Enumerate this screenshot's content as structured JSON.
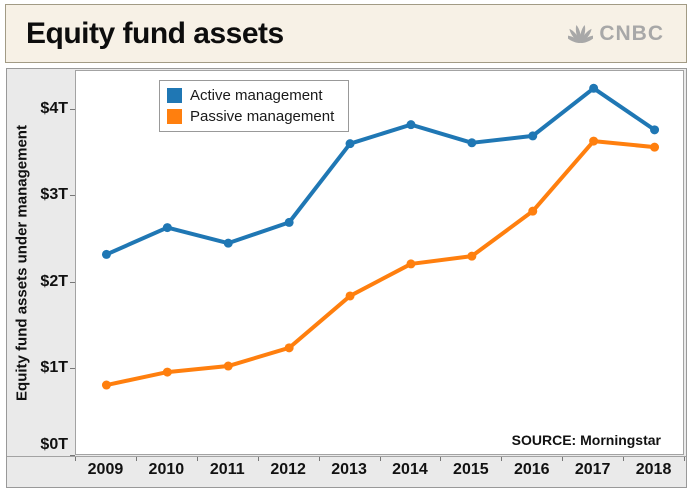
{
  "header": {
    "title": "Equity fund assets",
    "brand": "CNBC",
    "brand_color": "#a8a8a8"
  },
  "chart_data": {
    "type": "line",
    "x": [
      2009,
      2010,
      2011,
      2012,
      2013,
      2014,
      2015,
      2016,
      2017,
      2018
    ],
    "series": [
      {
        "name": "Active management",
        "color": "#1f77b4",
        "values": [
          2.33,
          2.64,
          2.46,
          2.7,
          3.61,
          3.83,
          3.62,
          3.7,
          4.25,
          3.77
        ]
      },
      {
        "name": "Passive management",
        "color": "#ff7f0e",
        "values": [
          0.82,
          0.97,
          1.04,
          1.25,
          1.85,
          2.22,
          2.31,
          2.83,
          3.64,
          3.57
        ]
      }
    ],
    "title": "Equity fund assets",
    "xlabel": "",
    "ylabel": "Equity fund assets under management",
    "y_ticks": [
      {
        "value": 0,
        "label": "$0T"
      },
      {
        "value": 1,
        "label": "$1T"
      },
      {
        "value": 2,
        "label": "$2T"
      },
      {
        "value": 3,
        "label": "$3T"
      },
      {
        "value": 4,
        "label": "$4T"
      }
    ],
    "ylim": [
      0,
      4.45
    ],
    "units": "trillions USD",
    "grid": false,
    "legend_position": "top-left",
    "source": "SOURCE: Morningstar"
  }
}
